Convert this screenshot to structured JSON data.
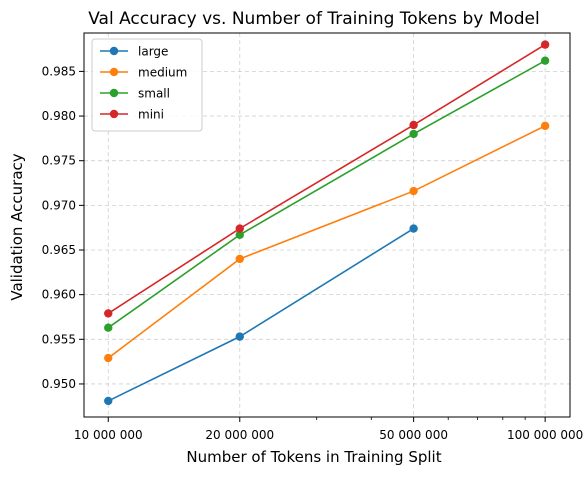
{
  "chart_data": {
    "type": "line",
    "title": "Val Accuracy vs. Number of Training Tokens by Model",
    "xlabel": "Number of Tokens in Training Split",
    "ylabel": "Validation Accuracy",
    "x_scale": "log",
    "xlim": [
      8800000,
      114000000
    ],
    "ylim": [
      0.9463,
      0.9893
    ],
    "x_ticks": [
      {
        "value": 10000000,
        "label": "10 000 000"
      },
      {
        "value": 20000000,
        "label": "20 000 000"
      },
      {
        "value": 50000000,
        "label": "50 000 000"
      },
      {
        "value": 100000000,
        "label": "100 000 000"
      }
    ],
    "x_minor_ticks": [
      30000000,
      40000000,
      60000000,
      70000000,
      80000000,
      90000000
    ],
    "y_ticks": [
      {
        "value": 0.95,
        "label": "0.950"
      },
      {
        "value": 0.955,
        "label": "0.955"
      },
      {
        "value": 0.96,
        "label": "0.960"
      },
      {
        "value": 0.965,
        "label": "0.965"
      },
      {
        "value": 0.97,
        "label": "0.970"
      },
      {
        "value": 0.975,
        "label": "0.975"
      },
      {
        "value": 0.98,
        "label": "0.980"
      },
      {
        "value": 0.985,
        "label": "0.985"
      }
    ],
    "grid": true,
    "legend_position": "top-left",
    "series": [
      {
        "name": "large",
        "color": "#1f77b4",
        "x": [
          10000000,
          20000000,
          50000000
        ],
        "y": [
          0.9481,
          0.9553,
          0.9674
        ]
      },
      {
        "name": "medium",
        "color": "#ff7f0e",
        "x": [
          10000000,
          20000000,
          50000000,
          100000000
        ],
        "y": [
          0.9529,
          0.964,
          0.9716,
          0.9789
        ]
      },
      {
        "name": "small",
        "color": "#2ca02c",
        "x": [
          10000000,
          20000000,
          50000000,
          100000000
        ],
        "y": [
          0.9563,
          0.9667,
          0.978,
          0.9862
        ]
      },
      {
        "name": "mini",
        "color": "#d62728",
        "x": [
          10000000,
          20000000,
          50000000,
          100000000
        ],
        "y": [
          0.9579,
          0.9674,
          0.979,
          0.988
        ]
      }
    ]
  }
}
